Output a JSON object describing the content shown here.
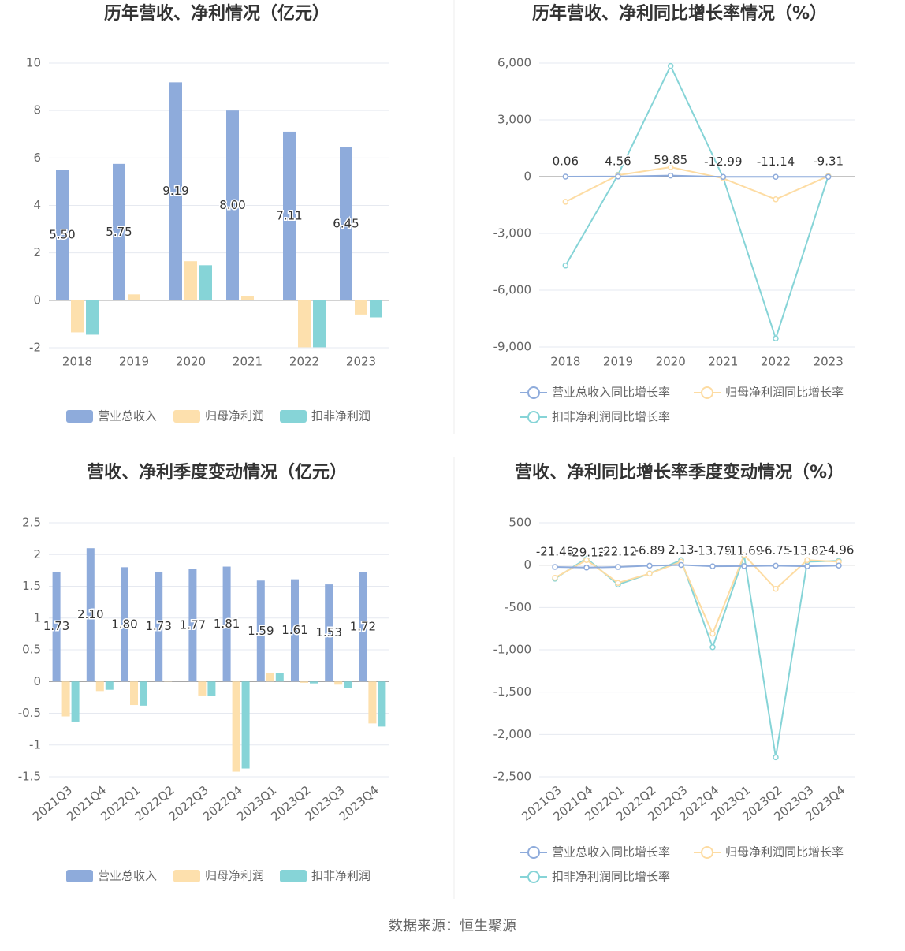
{
  "chart_data": [
    {
      "type": "bar",
      "title": "历年营收、净利情况（亿元）",
      "categories": [
        "2018",
        "2019",
        "2020",
        "2021",
        "2022",
        "2023"
      ],
      "series": [
        {
          "name": "营业总收入",
          "color": "#8eabdb",
          "values": [
            5.5,
            5.75,
            9.19,
            8.0,
            7.11,
            6.45
          ],
          "value_labels": [
            "5.50",
            "5.75",
            "9.19",
            "8.00",
            "7.11",
            "6.45"
          ]
        },
        {
          "name": "归母净利润",
          "color": "#fde0ad",
          "values": [
            -1.35,
            0.25,
            1.65,
            0.18,
            -1.98,
            -0.6
          ]
        },
        {
          "name": "扣非净利润",
          "color": "#86d4d7",
          "values": [
            -1.45,
            0.02,
            1.48,
            0.02,
            -1.98,
            -0.72
          ]
        }
      ],
      "ylim": [
        -2,
        10
      ],
      "yticks": [
        -2,
        0,
        2,
        4,
        6,
        8,
        10
      ],
      "grid": true
    },
    {
      "type": "line",
      "title": "历年营收、净利同比增长率情况（%）",
      "categories": [
        "2018",
        "2019",
        "2020",
        "2021",
        "2022",
        "2023"
      ],
      "series": [
        {
          "name": "营业总收入同比增长率",
          "color": "#8eabdb",
          "values": [
            0.06,
            4.56,
            59.85,
            -12.99,
            -11.14,
            -9.31
          ],
          "show_labels": true
        },
        {
          "name": "归母净利润同比增长率",
          "color": "#fddca3",
          "values": [
            -1330,
            80,
            500,
            -90,
            -1200,
            30
          ]
        },
        {
          "name": "扣非净利润同比增长率",
          "color": "#86d4d7",
          "values": [
            -4700,
            100,
            5850,
            -50,
            -8550,
            30
          ]
        }
      ],
      "ylim": [
        -9000,
        6000
      ],
      "yticks": [
        {
          "value": -9000,
          "label": "-9,000"
        },
        {
          "value": -6000,
          "label": "-6,000"
        },
        {
          "value": -3000,
          "label": "-3,000"
        },
        0,
        {
          "value": 3000,
          "label": "3,000"
        },
        {
          "value": 6000,
          "label": "6,000"
        }
      ],
      "grid": true
    },
    {
      "type": "bar",
      "title": "营收、净利季度变动情况（亿元）",
      "categories": [
        "2021Q3",
        "2021Q4",
        "2022Q1",
        "2022Q2",
        "2022Q3",
        "2022Q4",
        "2023Q1",
        "2023Q2",
        "2023Q3",
        "2023Q4"
      ],
      "series": [
        {
          "name": "营业总收入",
          "color": "#8eabdb",
          "values": [
            1.73,
            2.1,
            1.8,
            1.73,
            1.77,
            1.81,
            1.59,
            1.61,
            1.53,
            1.72
          ],
          "value_labels": [
            "1.73",
            "2.10",
            "1.80",
            "1.73",
            "1.77",
            "1.81",
            "1.59",
            "1.61",
            "1.53",
            "1.72"
          ]
        },
        {
          "name": "归母净利润",
          "color": "#fde0ad",
          "values": [
            -0.55,
            -0.15,
            -0.37,
            0.01,
            -0.22,
            -1.42,
            0.14,
            -0.02,
            -0.05,
            -0.66
          ]
        },
        {
          "name": "扣非净利润",
          "color": "#86d4d7",
          "values": [
            -0.63,
            -0.13,
            -0.38,
            0.0,
            -0.23,
            -1.37,
            0.13,
            -0.03,
            -0.1,
            -0.71
          ]
        }
      ],
      "ylim": [
        -1.5,
        2.5
      ],
      "yticks": [
        -1.5,
        -1,
        -0.5,
        0,
        0.5,
        1,
        1.5,
        2,
        2.5
      ],
      "grid": true
    },
    {
      "type": "line",
      "title": "营收、净利同比增长率季度变动情况（%）",
      "categories": [
        "2021Q3",
        "2021Q4",
        "2022Q1",
        "2022Q2",
        "2022Q3",
        "2022Q4",
        "2023Q1",
        "2023Q2",
        "2023Q3",
        "2023Q4"
      ],
      "series": [
        {
          "name": "营业总收入同比增长率",
          "color": "#8eabdb",
          "values": [
            -21.48,
            -29.12,
            -22.12,
            -6.89,
            2.13,
            -13.78,
            -11.69,
            -6.75,
            -13.82,
            -4.96
          ],
          "show_labels": true
        },
        {
          "name": "归母净利润同比增长率",
          "color": "#fddca3",
          "values": [
            -150,
            60,
            -210,
            -100,
            40,
            -810,
            120,
            -280,
            60,
            40
          ]
        },
        {
          "name": "扣非净利润同比增长率",
          "color": "#86d4d7",
          "values": [
            -160,
            80,
            -230,
            -100,
            60,
            -970,
            110,
            -2270,
            40,
            50
          ]
        }
      ],
      "ylim": [
        -2500,
        500
      ],
      "yticks": [
        {
          "value": -2500,
          "label": "-2,500"
        },
        {
          "value": -2000,
          "label": "-2,000"
        },
        {
          "value": -1500,
          "label": "-1,500"
        },
        {
          "value": -1000,
          "label": "-1,000"
        },
        -500,
        0,
        500
      ],
      "grid": true
    }
  ],
  "source": "数据来源：恒生聚源"
}
